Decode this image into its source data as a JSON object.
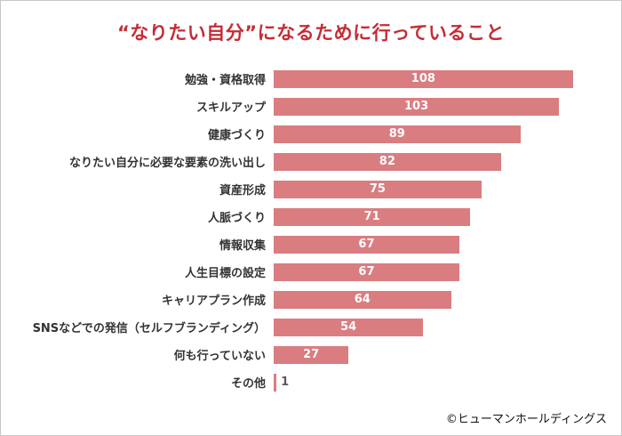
{
  "chart_data": {
    "type": "bar",
    "orientation": "horizontal",
    "title": "“なりたい自分”になるために行っていること",
    "categories": [
      "勉強・資格取得",
      "スキルアップ",
      "健康づくり",
      "なりたい自分に必要な要素の洗い出し",
      "資産形成",
      "人脈づくり",
      "情報収集",
      "人生目標の設定",
      "キャリアプラン作成",
      "SNSなどでの発信（セルフブランディング）",
      "何も行っていない",
      "その他"
    ],
    "values": [
      108,
      103,
      89,
      82,
      75,
      71,
      67,
      67,
      64,
      54,
      27,
      1
    ],
    "xlim": [
      0,
      110
    ],
    "grid": false,
    "legend": "none",
    "value_labels": "shown, centered inside bars (white); outside for tiny bars"
  },
  "colors": {
    "title": "#c42d36",
    "bar": "#d97d81",
    "value_inside": "#ffffff",
    "value_outside": "#595959",
    "category_label": "#333333"
  },
  "footer": {
    "copyright": "©ヒューマンホールディングス"
  }
}
